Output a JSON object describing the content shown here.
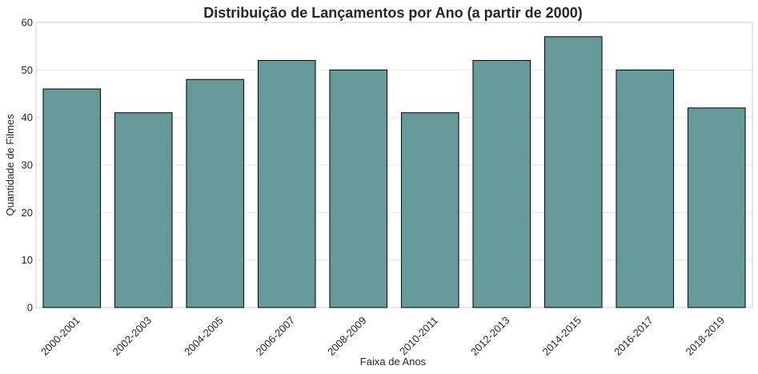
{
  "chart_data": {
    "type": "bar",
    "title": "Distribuição de Lançamentos por Ano (a partir de 2000)",
    "xlabel": "Faixa de Anos",
    "ylabel": "Quantidade de Filmes",
    "categories": [
      "2000-2001",
      "2002-2003",
      "2004-2005",
      "2006-2007",
      "2008-2009",
      "2010-2011",
      "2012-2013",
      "2014-2015",
      "2016-2017",
      "2018-2019"
    ],
    "values": [
      46,
      41,
      48,
      52,
      50,
      41,
      52,
      57,
      50,
      42
    ],
    "ylim": [
      0,
      60
    ],
    "yticks": [
      0,
      10,
      20,
      30,
      40,
      50,
      60
    ],
    "grid": "horizontal",
    "bar_color": "#66999a",
    "edge_color": "#000000"
  }
}
